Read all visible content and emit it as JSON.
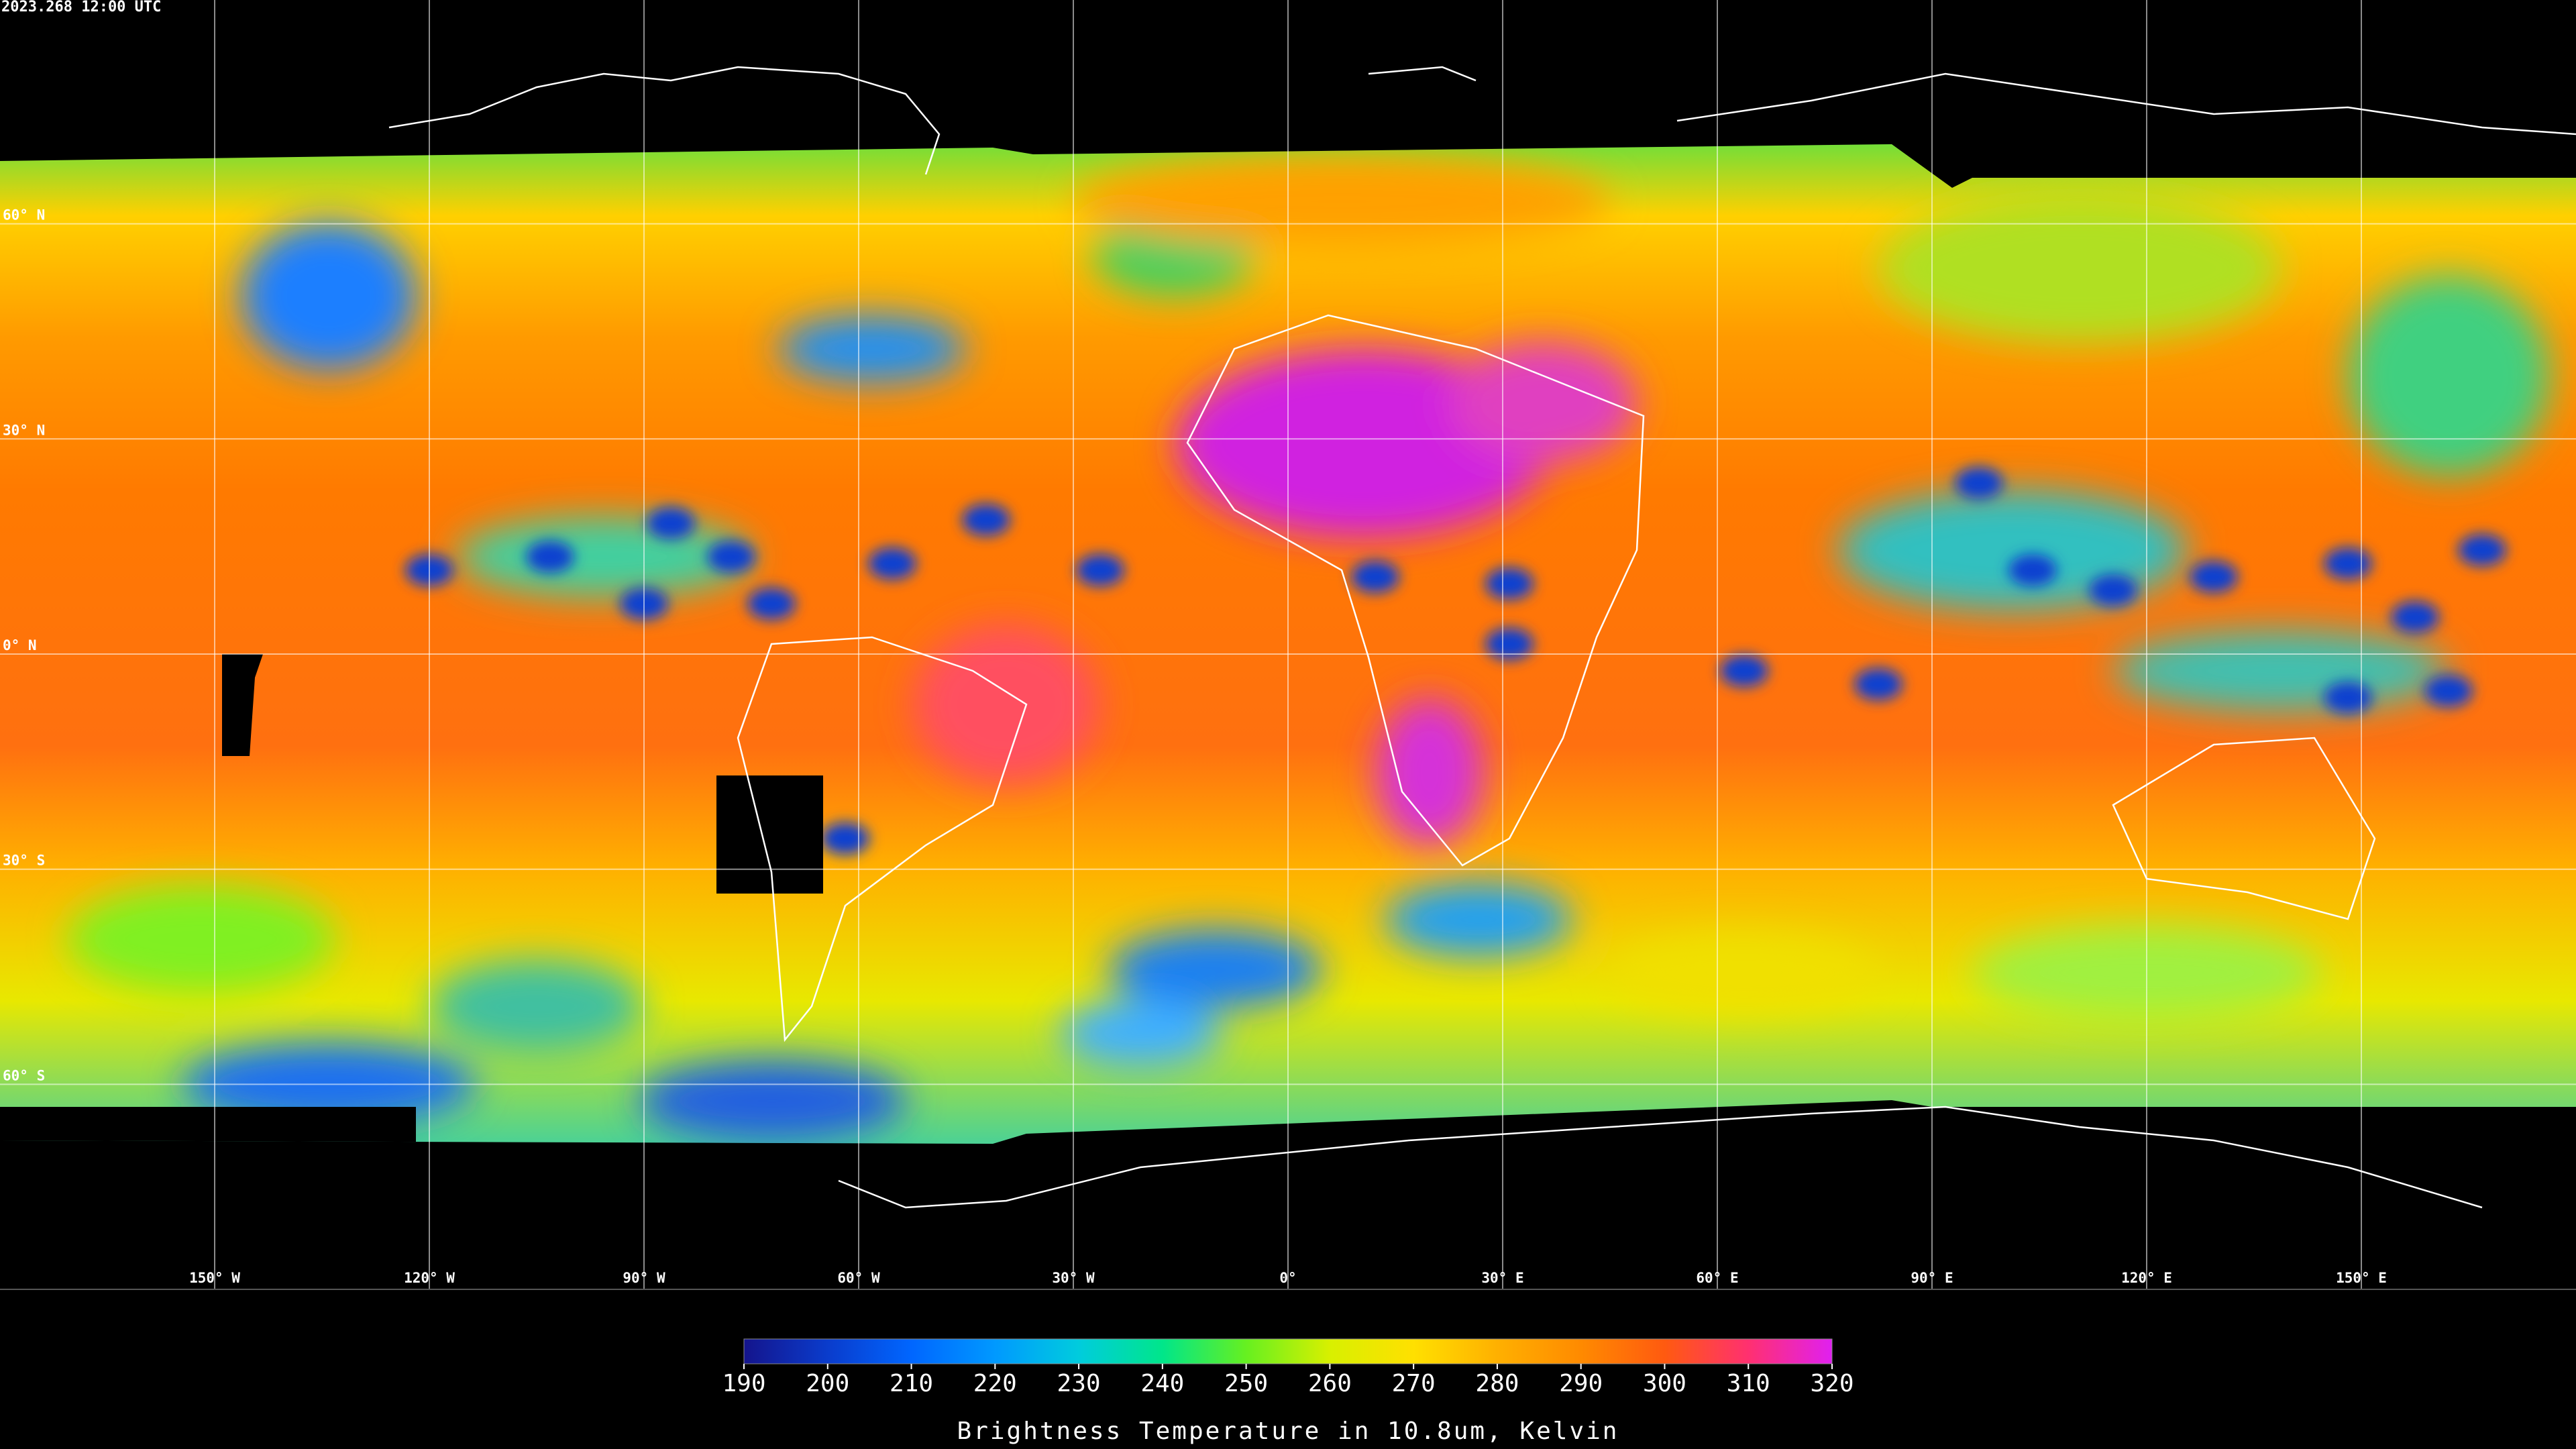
{
  "header": {
    "timestamp": "2023.268 12:00 UTC"
  },
  "map": {
    "lon_lines": [
      {
        "value": -150,
        "label": "150° W"
      },
      {
        "value": -120,
        "label": "120° W"
      },
      {
        "value": -90,
        "label": "90° W"
      },
      {
        "value": -60,
        "label": "60° W"
      },
      {
        "value": -30,
        "label": "30° W"
      },
      {
        "value": 0,
        "label": "0°"
      },
      {
        "value": 30,
        "label": "30° E"
      },
      {
        "value": 60,
        "label": "60° E"
      },
      {
        "value": 90,
        "label": "90° E"
      },
      {
        "value": 120,
        "label": "120° E"
      },
      {
        "value": 150,
        "label": "150° E"
      }
    ],
    "lat_lines": [
      {
        "value": 60,
        "label": "60° N"
      },
      {
        "value": 30,
        "label": "30° N"
      },
      {
        "value": 0,
        "label": "0° N"
      },
      {
        "value": -30,
        "label": "30° S"
      },
      {
        "value": -60,
        "label": "60° S"
      }
    ]
  },
  "colorbar": {
    "label": "Brightness Temperature in 10.8um, Kelvin",
    "range": [
      190,
      320
    ],
    "ticks": [
      190,
      200,
      210,
      220,
      230,
      240,
      250,
      260,
      270,
      280,
      290,
      300,
      310,
      320
    ],
    "colors": [
      "#14148c",
      "#0a3ccc",
      "#0066ff",
      "#0099ff",
      "#00ccdd",
      "#00e68a",
      "#66f020",
      "#d8f000",
      "#ffe000",
      "#ffb000",
      "#ff8a00",
      "#ff5a10",
      "#ff3070",
      "#e020f0"
    ]
  }
}
